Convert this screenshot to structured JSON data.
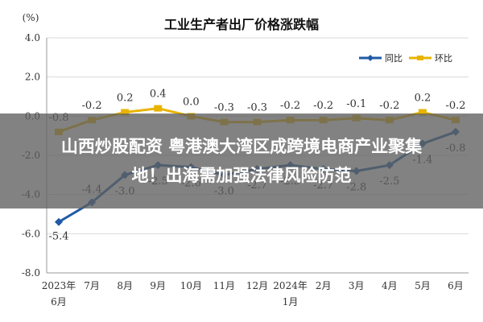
{
  "chart_data": {
    "type": "line",
    "title": "工业生产者出厂价格涨跌幅",
    "ylabel": "(%)",
    "ylim": [
      -8.0,
      4.0
    ],
    "yticks": [
      "4.0",
      "2.0",
      "0.0",
      "-2.0",
      "-4.0",
      "-6.0",
      "-8.0"
    ],
    "categories": [
      "2023年6月",
      "7月",
      "8月",
      "9月",
      "10月",
      "11月",
      "12月",
      "2024年1月",
      "2月",
      "3月",
      "4月",
      "5月",
      "6月"
    ],
    "xtick_lines": [
      [
        "2023年",
        "6月"
      ],
      [
        "7月"
      ],
      [
        "8月"
      ],
      [
        "9月"
      ],
      [
        "10月"
      ],
      [
        "11月"
      ],
      [
        "12月"
      ],
      [
        "2024年",
        "1月"
      ],
      [
        "2月"
      ],
      [
        "3月"
      ],
      [
        "4月"
      ],
      [
        "5月"
      ],
      [
        "6月"
      ]
    ],
    "series": [
      {
        "name": "同比",
        "color": "#1f5aa6",
        "values": [
          -5.4,
          -4.4,
          -3.0,
          -2.5,
          -2.6,
          -3.0,
          -2.7,
          -2.5,
          -2.7,
          -2.8,
          -2.5,
          -1.4,
          -0.8
        ],
        "labels": [
          "-5.4",
          "-4.4",
          "-3.0",
          "-2.5",
          "-2.6",
          "-3.0",
          "-2.7",
          "-2.5",
          "-2.7",
          "-2.8",
          "-2.5",
          "-1.4",
          "-0.8"
        ]
      },
      {
        "name": "环比",
        "color": "#e8b400",
        "values": [
          -0.8,
          -0.2,
          0.2,
          0.4,
          0.0,
          -0.3,
          -0.3,
          -0.2,
          -0.2,
          -0.1,
          -0.2,
          0.2,
          -0.2
        ],
        "labels": [
          "-0.8",
          "-0.2",
          "0.2",
          "0.4",
          "0.0",
          "-0.3",
          "-0.3",
          "-0.2",
          "-0.2",
          "-0.1",
          "-0.2",
          "0.2",
          "-0.2"
        ]
      }
    ],
    "grid": true,
    "legend_position": "top-right"
  },
  "overlay": {
    "banner_line1": "山西炒股配资 粤港澳大湾区成跨境电商产业聚集",
    "banner_line2": "地！出海需加强法律风险防范"
  }
}
